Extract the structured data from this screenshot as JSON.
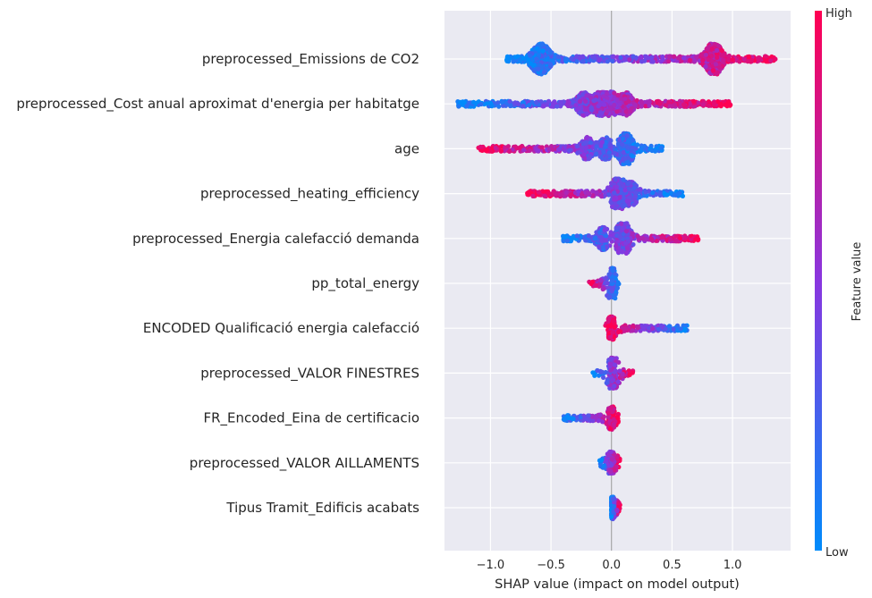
{
  "chart_data": {
    "type": "scatter",
    "subtype": "shap-beeswarm-summary",
    "title": "",
    "xlabel": "SHAP value (impact on model output)",
    "ylabel": "",
    "xlim": [
      -1.38,
      1.48
    ],
    "xticks": [
      -1.0,
      -0.5,
      0.0,
      0.5,
      1.0
    ],
    "xtick_labels": [
      "−1.0",
      "−0.5",
      "0.0",
      "0.5",
      "1.0"
    ],
    "grid": true,
    "zero_line": 0.0,
    "colorbar": {
      "title": "Feature value",
      "high_label": "High",
      "low_label": "Low",
      "low_color": "#008bfb",
      "high_color": "#ff0052"
    },
    "features": [
      {
        "name": "preprocessed_Emissions de CO2",
        "min": -0.87,
        "max": 1.36,
        "low_at": "left",
        "dense": [
          -0.62,
          -0.55,
          0.82,
          0.87
        ]
      },
      {
        "name": "preprocessed_Cost anual aproximat d'energia per habitatge",
        "min": -1.27,
        "max": 0.99,
        "low_at": "left",
        "dense": [
          -0.23,
          -0.1,
          0.0,
          0.12
        ]
      },
      {
        "name": "age",
        "min": -1.1,
        "max": 0.43,
        "low_at": "right",
        "dense": [
          -0.2,
          -0.05,
          0.1,
          0.14
        ]
      },
      {
        "name": "preprocessed_heating_efficiency",
        "min": -0.7,
        "max": 0.59,
        "low_at": "right",
        "dense": [
          0.03,
          0.07,
          0.17
        ]
      },
      {
        "name": "preprocessed_Energia calefacció demanda",
        "min": -0.4,
        "max": 0.72,
        "low_at": "left",
        "dense": [
          -0.07,
          0.07,
          0.12
        ]
      },
      {
        "name": "pp_total_energy",
        "min": -0.19,
        "max": 0.07,
        "low_at": "right",
        "dense": [
          0.0,
          0.02
        ]
      },
      {
        "name": "ENCODED Qualificació energia calefacció",
        "min": -0.05,
        "max": 0.64,
        "low_at": "right",
        "dense": [
          0.0
        ]
      },
      {
        "name": "preprocessed_VALOR FINESTRES",
        "min": -0.16,
        "max": 0.18,
        "low_at": "left",
        "dense": [
          0.0,
          0.02
        ]
      },
      {
        "name": "FR_Encoded_Eina de certificacio",
        "min": -0.4,
        "max": 0.06,
        "low_at": "left",
        "dense": [
          0.0
        ]
      },
      {
        "name": "preprocessed_VALOR AILLAMENTS",
        "min": -0.1,
        "max": 0.07,
        "low_at": "left",
        "dense": [
          0.0
        ]
      },
      {
        "name": "Tipus Tramit_Edificis acabats",
        "min": 0.0,
        "max": 0.07,
        "low_at": "left",
        "dense": [
          0.0
        ]
      }
    ]
  }
}
